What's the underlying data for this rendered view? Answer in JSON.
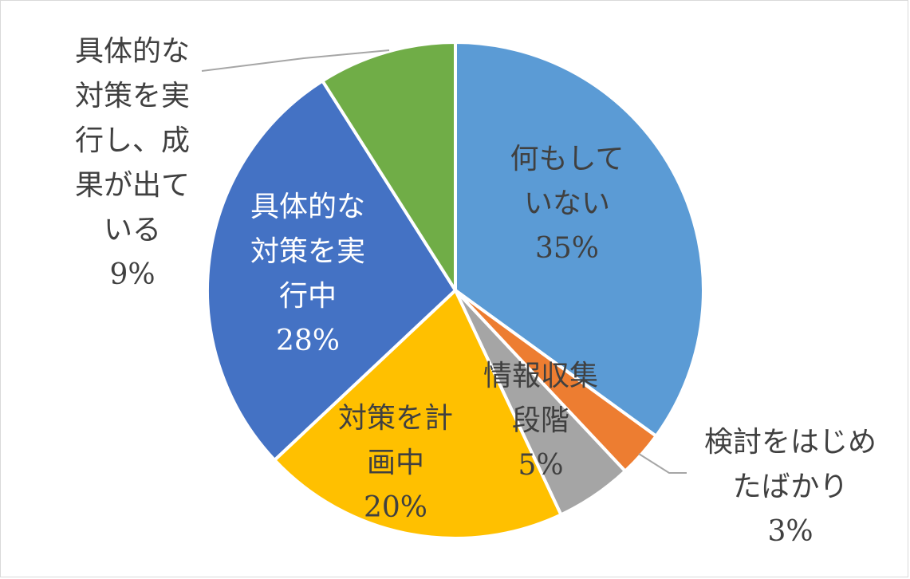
{
  "chart_data": {
    "type": "pie",
    "title": "",
    "slices": [
      {
        "label": "何もしていない",
        "value": 35,
        "value_label": "35%",
        "color": "#5B9BD5",
        "label_lines": [
          "何もして",
          "いない",
          "35%"
        ],
        "label_color": "#404040"
      },
      {
        "label": "検討をはじめたばかり",
        "value": 3,
        "value_label": "3%",
        "color": "#ED7D31",
        "label_lines": [
          "検討をはじめ",
          "たばかり",
          "3%"
        ],
        "label_color": "#404040"
      },
      {
        "label": "情報収集段階",
        "value": 5,
        "value_label": "5%",
        "color": "#A5A5A5",
        "label_lines": [
          "情報収集",
          "段階",
          "5%"
        ],
        "label_color": "#404040"
      },
      {
        "label": "対策を計画中",
        "value": 20,
        "value_label": "20%",
        "color": "#FFC000",
        "label_lines": [
          "対策を計",
          "画中",
          "20%"
        ],
        "label_color": "#404040"
      },
      {
        "label": "具体的な対策を実行中",
        "value": 28,
        "value_label": "28%",
        "color": "#4472C4",
        "label_lines": [
          "具体的な",
          "対策を実",
          "行中",
          "28%"
        ],
        "label_color": "#ffffff"
      },
      {
        "label": "具体的な対策を実行し、成果が出ている",
        "value": 9,
        "value_label": "9%",
        "color": "#70AD47",
        "label_lines": [
          "具体的な",
          "対策を実",
          "行し、成",
          "果が出て",
          "いる",
          "9%"
        ],
        "label_color": "#404040"
      }
    ],
    "legend": "none",
    "start_angle": "12 o'clock",
    "direction": "clockwise"
  }
}
